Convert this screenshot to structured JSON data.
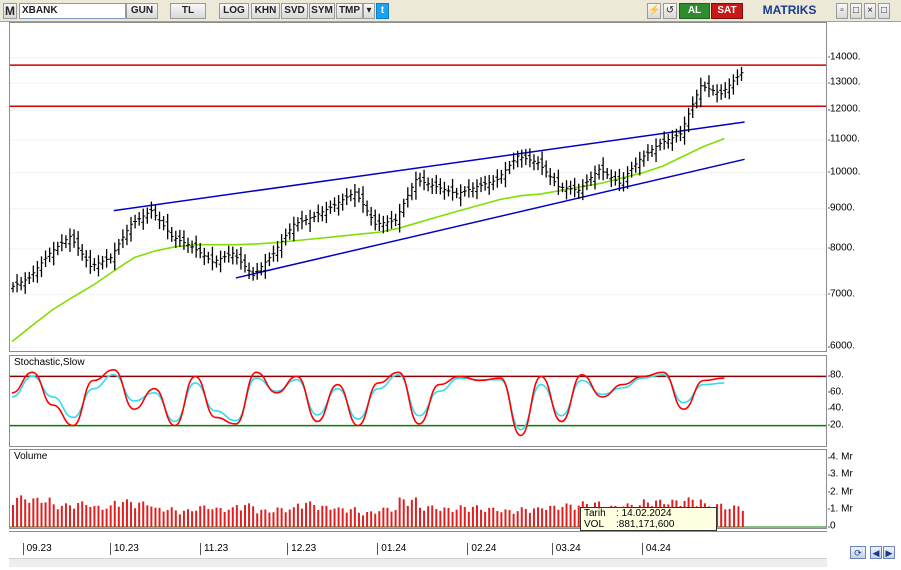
{
  "toolbar": {
    "menu_glyph": "M",
    "symbol": "XBANK",
    "period": "GUN",
    "currency": "TL",
    "scale": "LOG",
    "khn": "KHN",
    "svd": "SVD",
    "sym": "SYM",
    "tmp": "TMP",
    "dropdown_glyph": "▾",
    "twitter_glyph": "t",
    "flash_glyph": "⚡",
    "refresh_glyph": "↺",
    "al": "AL",
    "sat": "SAT",
    "brand": "MATRIKS",
    "min_glyph": "▫",
    "max_glyph": "□",
    "close_glyph": "×"
  },
  "price_axis": {
    "ticks": [
      "14000.",
      "13000.",
      "12000.",
      "11000.",
      "10000.",
      "9000.",
      "8000.",
      "7000.",
      "6000."
    ],
    "tick_values": [
      14000,
      13000,
      12000,
      11000,
      10000,
      9000,
      8000,
      7000,
      6000
    ],
    "scale": "log",
    "range": [
      5900,
      15500
    ]
  },
  "stoch": {
    "title": "Stochastic,Slow",
    "ticks": [
      "80.",
      "60.",
      "40.",
      "20."
    ],
    "tick_values": [
      80,
      60,
      40,
      20
    ],
    "range": [
      0,
      100
    ],
    "levels": [
      80,
      20
    ]
  },
  "volume": {
    "title": "Volume",
    "ticks": [
      "4. Mr",
      "3. Mr",
      "2. Mr",
      "1. Mr",
      "0"
    ],
    "tick_values": [
      4,
      3,
      2,
      1,
      0
    ],
    "range": [
      0,
      4.3
    ]
  },
  "dates": [
    "09.23",
    "10.23",
    "11.23",
    "12.23",
    "01.24",
    "02.24",
    "03.24",
    "04.24"
  ],
  "tooltip": {
    "date_key": "Tarih",
    "date_value": ": 14.02.2024",
    "vol_key": "VOL",
    "vol_value": ":881,171,600"
  },
  "nav": {
    "refresh_glyph": "⟳",
    "left_glyph": "◀",
    "right_glyph": "▶"
  },
  "colors": {
    "candle": "#000000",
    "moving_average": "#7fe000",
    "channel": "#0000c8",
    "resistance": "#d00000",
    "stoch_k": "#ff0000",
    "stoch_d": "#33ddee",
    "stoch_upper": "#8b0000",
    "stoch_lower": "#008000",
    "volume": "#e02020"
  },
  "chart_data": {
    "type": "candlestick",
    "x": [
      "2023-08-28",
      "2023-09-04",
      "2023-09-11",
      "2023-09-18",
      "2023-09-25",
      "2023-10-02",
      "2023-10-09",
      "2023-10-16",
      "2023-10-23",
      "2023-10-30",
      "2023-11-06",
      "2023-11-13",
      "2023-11-20",
      "2023-11-27",
      "2023-12-04",
      "2023-12-11",
      "2023-12-18",
      "2023-12-25",
      "2024-01-01",
      "2024-01-08",
      "2024-01-15",
      "2024-01-22",
      "2024-01-29",
      "2024-02-05",
      "2024-02-12",
      "2024-02-19",
      "2024-02-26",
      "2024-03-04",
      "2024-03-11",
      "2024-03-18",
      "2024-03-25",
      "2024-04-01",
      "2024-04-08",
      "2024-04-15",
      "2024-04-22",
      "2024-04-29"
    ],
    "close": [
      7350,
      7900,
      8300,
      7600,
      7800,
      8600,
      8950,
      8300,
      8050,
      7700,
      7900,
      7400,
      7900,
      8600,
      8800,
      9100,
      9450,
      8600,
      8700,
      9800,
      9600,
      9400,
      9600,
      9800,
      10500,
      10300,
      9600,
      9500,
      10100,
      9700,
      10400,
      10900,
      11200,
      12900,
      12600,
      13400
    ],
    "moving_average": [
      6100,
      6400,
      6700,
      6950,
      7200,
      7500,
      7800,
      7950,
      8050,
      8100,
      8100,
      8100,
      8120,
      8150,
      8200,
      8250,
      8300,
      8350,
      8400,
      8500,
      8650,
      8800,
      8950,
      9100,
      9250,
      9350,
      9400,
      9500,
      9600,
      9700,
      9850,
      10000,
      10200,
      10500,
      10800,
      11050
    ],
    "resistance_levels": [
      13700,
      12150
    ],
    "channel_upper": {
      "from": [
        "2023-10-02",
        8950
      ],
      "to": [
        "2024-05-06",
        11600
      ]
    },
    "channel_lower": {
      "from": [
        "2023-11-13",
        7350
      ],
      "to": [
        "2024-05-06",
        10400
      ]
    },
    "stoch_k": [
      60,
      85,
      45,
      20,
      75,
      88,
      40,
      65,
      20,
      80,
      30,
      22,
      85,
      60,
      80,
      25,
      70,
      20,
      72,
      85,
      22,
      70,
      80,
      75,
      78,
      8,
      80,
      25,
      82,
      55,
      70,
      80,
      85,
      40,
      75,
      78
    ],
    "stoch_d": [
      55,
      80,
      55,
      30,
      65,
      82,
      50,
      60,
      25,
      72,
      38,
      26,
      78,
      62,
      76,
      33,
      65,
      28,
      65,
      82,
      32,
      62,
      78,
      76,
      76,
      15,
      70,
      32,
      75,
      58,
      66,
      78,
      82,
      48,
      70,
      72
    ],
    "volume_mr": [
      1.6,
      1.5,
      1.2,
      1.3,
      1.1,
      1.4,
      1.3,
      1.0,
      0.9,
      1.1,
      1.0,
      1.2,
      0.9,
      1.0,
      1.3,
      1.1,
      1.0,
      0.8,
      1.0,
      1.5,
      1.1,
      1.0,
      1.1,
      1.0,
      0.9,
      1.0,
      1.1,
      1.2,
      1.3,
      1.1,
      1.2,
      1.4,
      1.4,
      1.5,
      1.2,
      1.1
    ]
  }
}
